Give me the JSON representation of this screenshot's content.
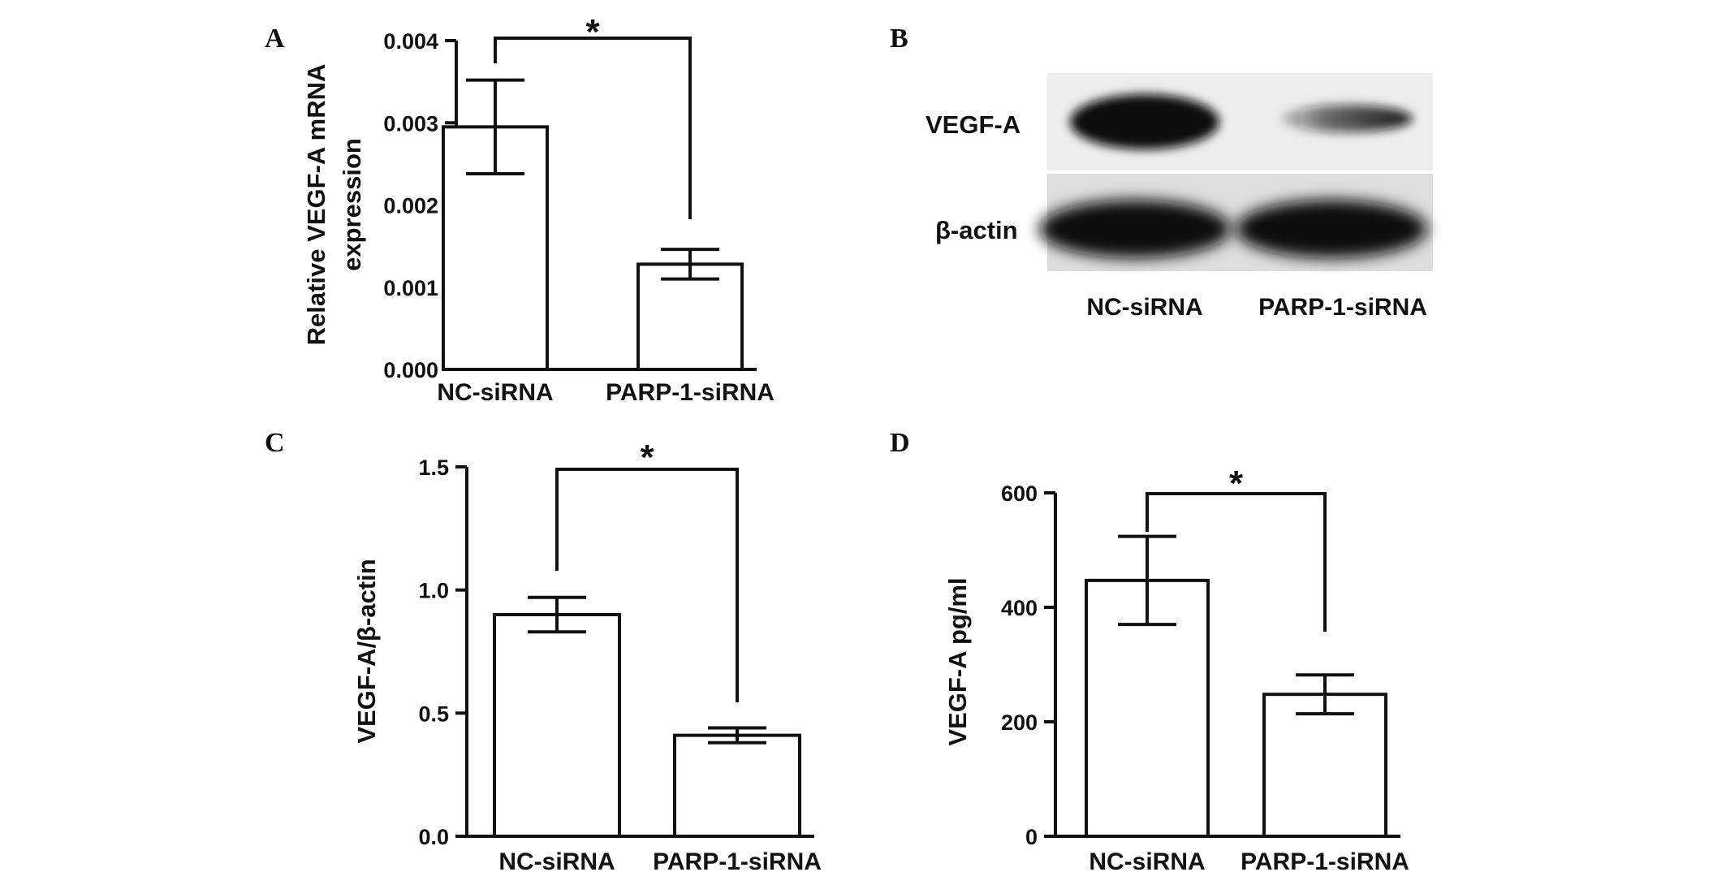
{
  "chart_data": [
    {
      "panel": "A",
      "type": "bar",
      "categories": [
        "NC-siRNA",
        "PARP-1-siRNA"
      ],
      "values": [
        0.00295,
        0.00128
      ],
      "error": [
        0.00057,
        0.00018
      ],
      "ylabel": [
        "Relative VEGF-A mRNA",
        "expression"
      ],
      "ylim": [
        0,
        0.004
      ],
      "yticks": [
        0,
        0.001,
        0.002,
        0.003,
        0.004
      ],
      "ytick_labels": [
        "0.000",
        "0.001",
        "0.002",
        "0.003",
        "0.004"
      ],
      "significance": "*"
    },
    {
      "panel": "C",
      "type": "bar",
      "categories": [
        "NC-siRNA",
        "PARP-1-siRNA"
      ],
      "values": [
        0.9,
        0.41
      ],
      "error": [
        0.07,
        0.03
      ],
      "ylabel": [
        "VEGF-A/β-actin"
      ],
      "ylim": [
        0,
        1.5
      ],
      "yticks": [
        0,
        0.5,
        1.0,
        1.5
      ],
      "ytick_labels": [
        "0.0",
        "0.5",
        "1.0",
        "1.5"
      ],
      "significance": "*"
    },
    {
      "panel": "D",
      "type": "bar",
      "categories": [
        "NC-siRNA",
        "PARP-1-siRNA"
      ],
      "values": [
        447,
        248
      ],
      "error": [
        77,
        34
      ],
      "ylabel": [
        "VEGF-A pg/ml"
      ],
      "ylim": [
        0,
        600
      ],
      "yticks": [
        0,
        200,
        400,
        600
      ],
      "ytick_labels": [
        "0",
        "200",
        "400",
        "600"
      ],
      "significance": "*"
    }
  ],
  "blot": {
    "panel": "B",
    "rows": [
      "VEGF-A",
      "β-actin"
    ],
    "lanes": [
      "NC-siRNA",
      "PARP-1-siRNA"
    ]
  }
}
